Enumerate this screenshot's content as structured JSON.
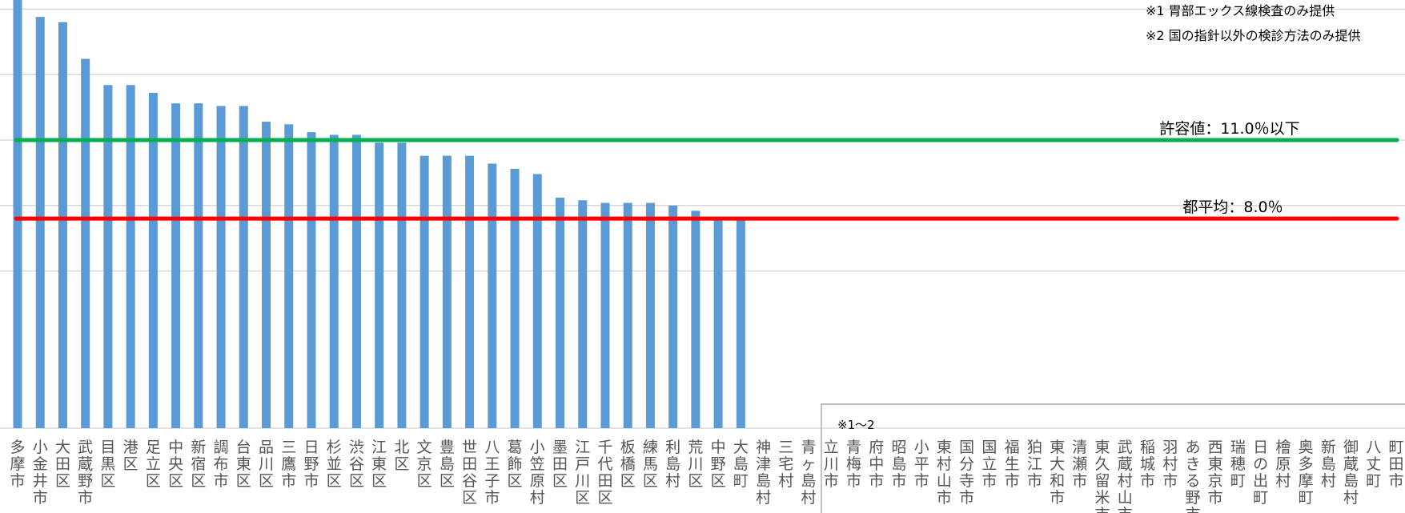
{
  "chart_data": {
    "type": "bar",
    "categories": [
      "多摩市",
      "小金井市",
      "大田区",
      "武蔵野市",
      "目黒区",
      "港区",
      "足立区",
      "中央区",
      "新宿区",
      "調布市",
      "台東区",
      "品川区",
      "三鷹市",
      "日野市",
      "杉並区",
      "渋谷区",
      "江東区",
      "北区",
      "文京区",
      "豊島区",
      "世田谷区",
      "八王子市",
      "葛飾区",
      "小笠原村",
      "墨田区",
      "江戸川区",
      "千代田区",
      "板橋区",
      "練馬区",
      "利島村",
      "荒川区",
      "中野区",
      "大島町",
      "神津島村",
      "三宅村",
      "青ヶ島村",
      "立川市",
      "青梅市",
      "府中市",
      "昭島市",
      "小平市",
      "東村山市",
      "国分寺市",
      "国立市",
      "福生市",
      "狛江市",
      "東大和市",
      "清瀬市",
      "東久留米市",
      "武蔵村山市",
      "稲城市",
      "羽村市",
      "あきる野市",
      "西東京市",
      "瑞穂町",
      "日の出町",
      "檜原村",
      "奥多摩町",
      "新島村",
      "御蔵島村",
      "八丈町",
      "町田市"
    ],
    "values": [
      16.6,
      15.7,
      15.5,
      14.1,
      13.1,
      13.1,
      12.8,
      12.4,
      12.4,
      12.3,
      12.3,
      11.7,
      11.6,
      11.3,
      11.2,
      11.2,
      10.9,
      10.9,
      10.4,
      10.4,
      10.4,
      10.1,
      9.9,
      9.7,
      8.8,
      8.7,
      8.6,
      8.6,
      8.6,
      8.5,
      8.3,
      8.0,
      8.0,
      0,
      0,
      0,
      0,
      0,
      0,
      0,
      0,
      0,
      0,
      0,
      0,
      0,
      0,
      0,
      0,
      0,
      0,
      0,
      0,
      0,
      0,
      0,
      0,
      0,
      0,
      0,
      0,
      0
    ],
    "reference_lines": [
      {
        "label": "許容値：11.0％以下",
        "value": 11.0,
        "color": "#00b050"
      },
      {
        "label": "都平均：8.0％",
        "value": 8.0,
        "color": "#ff0000"
      }
    ],
    "notes": [
      "※1 胃部エックス線検査のみ提供",
      "※2 国の指針以外の検診方法のみ提供"
    ],
    "box_label": "※1〜2",
    "gridlines": [
      6,
      8.5,
      11,
      13.5,
      16
    ],
    "colors": {
      "bar": "#5b9bd5",
      "grid": "#d9d9d9"
    }
  }
}
